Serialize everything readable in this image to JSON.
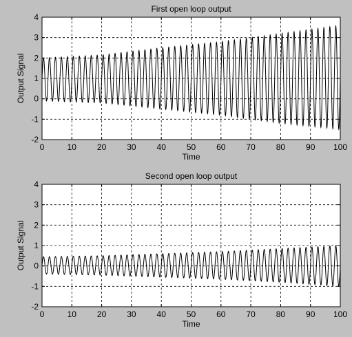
{
  "figure": {
    "background": "#c0c0c0",
    "axes_background": "#ffffff",
    "line_color": "#000000"
  },
  "chart_data": [
    {
      "type": "line",
      "title": "First open loop output",
      "xlabel": "Time",
      "ylabel": "Output Signal",
      "xlim": [
        0,
        100
      ],
      "ylim": [
        -2,
        4
      ],
      "xticks": [
        "0",
        "10",
        "20",
        "30",
        "40",
        "50",
        "60",
        "70",
        "80",
        "90",
        "100"
      ],
      "yticks": [
        "-2",
        "-1",
        "0",
        "1",
        "2",
        "3",
        "4"
      ],
      "grid": true,
      "signal": {
        "description": "oscillation with slowly growing amplitude",
        "period": 2.0,
        "peaks": [
          [
            0,
            2.0
          ],
          [
            20,
            2.15
          ],
          [
            40,
            2.5
          ],
          [
            60,
            2.8
          ],
          [
            80,
            3.2
          ],
          [
            100,
            3.6
          ]
        ],
        "troughs": [
          [
            0,
            -0.1
          ],
          [
            20,
            -0.2
          ],
          [
            40,
            -0.5
          ],
          [
            60,
            -0.8
          ],
          [
            80,
            -1.2
          ],
          [
            100,
            -1.5
          ]
        ]
      }
    },
    {
      "type": "line",
      "title": "Second open loop output",
      "xlabel": "Time",
      "ylabel": "Output Signal",
      "xlim": [
        0,
        100
      ],
      "ylim": [
        -2,
        4
      ],
      "xticks": [
        "0",
        "10",
        "20",
        "30",
        "40",
        "50",
        "60",
        "70",
        "80",
        "90",
        "100"
      ],
      "yticks": [
        "-2",
        "-1",
        "0",
        "1",
        "2",
        "3",
        "4"
      ],
      "grid": true,
      "signal": {
        "description": "oscillation with slowly growing amplitude",
        "period": 2.0,
        "peaks": [
          [
            0,
            0.45
          ],
          [
            20,
            0.5
          ],
          [
            40,
            0.6
          ],
          [
            60,
            0.7
          ],
          [
            80,
            0.85
          ],
          [
            100,
            1.0
          ]
        ],
        "troughs": [
          [
            0,
            -0.4
          ],
          [
            20,
            -0.45
          ],
          [
            40,
            -0.55
          ],
          [
            60,
            -0.65
          ],
          [
            80,
            -0.8
          ],
          [
            100,
            -1.0
          ]
        ]
      }
    }
  ]
}
